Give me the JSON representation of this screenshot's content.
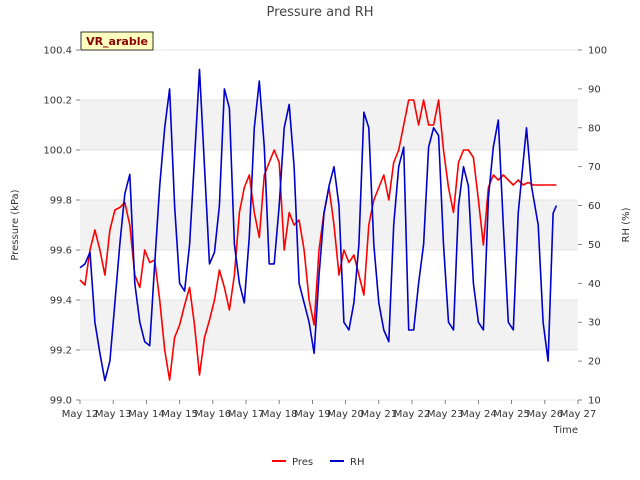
{
  "chart_data": {
    "type": "line",
    "title": "Pressure and RH",
    "xlabel": "Time",
    "ylabel_left": "Pressure (kPa)",
    "ylabel_right": "RH (%)",
    "badge": "VR_arable",
    "x_ticks": [
      "May 12",
      "May 13",
      "May 14",
      "May 15",
      "May 16",
      "May 17",
      "May 18",
      "May 19",
      "May 20",
      "May 21",
      "May 22",
      "May 23",
      "May 24",
      "May 25",
      "May 26",
      "May 27"
    ],
    "xlim": [
      0,
      15
    ],
    "ylim_left": [
      99.0,
      100.4
    ],
    "ylim_right": [
      10,
      100
    ],
    "y_ticks_left": [
      99.0,
      99.2,
      99.4,
      99.6,
      99.8,
      100.0,
      100.2,
      100.4
    ],
    "y_ticks_left_labels": [
      "99.0",
      "99.2",
      "99.4",
      "99.6",
      "99.8",
      "100.0",
      "100.2",
      "100.4"
    ],
    "y_ticks_right": [
      10,
      20,
      30,
      40,
      50,
      60,
      70,
      80,
      90,
      100
    ],
    "y_ticks_right_labels": [
      "10",
      "20",
      "30",
      "40",
      "50",
      "60",
      "70",
      "80",
      "90",
      "100"
    ],
    "grid": "horizontal bands",
    "legend": "bottom-center",
    "series": [
      {
        "name": "Pres",
        "color": "#ff0000",
        "axis": "left",
        "x": [
          0.0,
          0.15,
          0.3,
          0.45,
          0.6,
          0.75,
          0.9,
          1.05,
          1.2,
          1.35,
          1.5,
          1.65,
          1.8,
          1.95,
          2.1,
          2.25,
          2.4,
          2.55,
          2.7,
          2.85,
          3.0,
          3.15,
          3.3,
          3.45,
          3.6,
          3.75,
          3.9,
          4.05,
          4.2,
          4.35,
          4.5,
          4.65,
          4.8,
          4.95,
          5.1,
          5.25,
          5.4,
          5.55,
          5.7,
          5.85,
          6.0,
          6.15,
          6.3,
          6.45,
          6.6,
          6.75,
          6.9,
          7.05,
          7.2,
          7.35,
          7.5,
          7.65,
          7.8,
          7.95,
          8.1,
          8.25,
          8.4,
          8.55,
          8.7,
          8.85,
          9.0,
          9.15,
          9.3,
          9.45,
          9.6,
          9.75,
          9.9,
          10.05,
          10.2,
          10.35,
          10.5,
          10.65,
          10.8,
          10.95,
          11.1,
          11.25,
          11.4,
          11.55,
          11.7,
          11.85,
          12.0,
          12.15,
          12.3,
          12.45,
          12.6,
          12.75,
          12.9,
          13.05,
          13.2,
          13.35,
          13.5,
          13.65,
          13.8,
          13.95,
          14.1,
          14.25,
          14.35
        ],
        "values": [
          99.48,
          99.46,
          99.6,
          99.68,
          99.6,
          99.5,
          99.68,
          99.76,
          99.77,
          99.79,
          99.7,
          99.5,
          99.45,
          99.6,
          99.55,
          99.56,
          99.4,
          99.2,
          99.08,
          99.25,
          99.3,
          99.38,
          99.45,
          99.3,
          99.1,
          99.25,
          99.32,
          99.4,
          99.52,
          99.45,
          99.36,
          99.5,
          99.75,
          99.85,
          99.9,
          99.75,
          99.65,
          99.9,
          99.95,
          100.0,
          99.95,
          99.6,
          99.75,
          99.7,
          99.72,
          99.6,
          99.4,
          99.3,
          99.6,
          99.75,
          99.85,
          99.7,
          99.5,
          99.6,
          99.55,
          99.58,
          99.5,
          99.42,
          99.7,
          99.8,
          99.85,
          99.9,
          99.8,
          99.95,
          100.0,
          100.1,
          100.2,
          100.2,
          100.1,
          100.2,
          100.1,
          100.1,
          100.2,
          100.0,
          99.85,
          99.75,
          99.95,
          100.0,
          100.0,
          99.97,
          99.8,
          99.62,
          99.85,
          99.9,
          99.88,
          99.9,
          99.88,
          99.86,
          99.88,
          99.86,
          99.87,
          99.86,
          99.86,
          99.86,
          99.86,
          99.86,
          99.86
        ]
      },
      {
        "name": "RH",
        "color": "#0000cc",
        "axis": "right",
        "x": [
          0.0,
          0.15,
          0.3,
          0.45,
          0.6,
          0.75,
          0.9,
          1.05,
          1.2,
          1.35,
          1.5,
          1.65,
          1.8,
          1.95,
          2.1,
          2.25,
          2.4,
          2.55,
          2.7,
          2.85,
          3.0,
          3.15,
          3.3,
          3.45,
          3.6,
          3.75,
          3.9,
          4.05,
          4.2,
          4.35,
          4.5,
          4.65,
          4.8,
          4.95,
          5.1,
          5.25,
          5.4,
          5.55,
          5.7,
          5.85,
          6.0,
          6.15,
          6.3,
          6.45,
          6.6,
          6.75,
          6.9,
          7.05,
          7.2,
          7.35,
          7.5,
          7.65,
          7.8,
          7.95,
          8.1,
          8.25,
          8.4,
          8.55,
          8.7,
          8.85,
          9.0,
          9.15,
          9.3,
          9.45,
          9.6,
          9.75,
          9.9,
          10.05,
          10.2,
          10.35,
          10.5,
          10.65,
          10.8,
          10.95,
          11.1,
          11.25,
          11.4,
          11.55,
          11.7,
          11.85,
          12.0,
          12.15,
          12.3,
          12.45,
          12.6,
          12.75,
          12.9,
          13.05,
          13.2,
          13.45,
          13.6,
          13.8,
          13.95,
          14.1,
          14.25,
          14.35
        ],
        "values": [
          44,
          45,
          48,
          30,
          22,
          15,
          20,
          35,
          50,
          63,
          68,
          40,
          30,
          25,
          24,
          45,
          65,
          80,
          90,
          60,
          40,
          38,
          50,
          72,
          95,
          70,
          45,
          48,
          60,
          90,
          85,
          50,
          40,
          35,
          52,
          80,
          92,
          75,
          45,
          45,
          60,
          80,
          86,
          70,
          40,
          35,
          30,
          22,
          42,
          58,
          65,
          70,
          60,
          30,
          28,
          35,
          50,
          84,
          80,
          50,
          35,
          28,
          25,
          55,
          70,
          75,
          28,
          28,
          40,
          50,
          75,
          80,
          78,
          50,
          30,
          28,
          60,
          70,
          65,
          40,
          30,
          28,
          62,
          75,
          82,
          55,
          30,
          28,
          58,
          80,
          65,
          55,
          30,
          20,
          58,
          60
        ]
      }
    ]
  }
}
